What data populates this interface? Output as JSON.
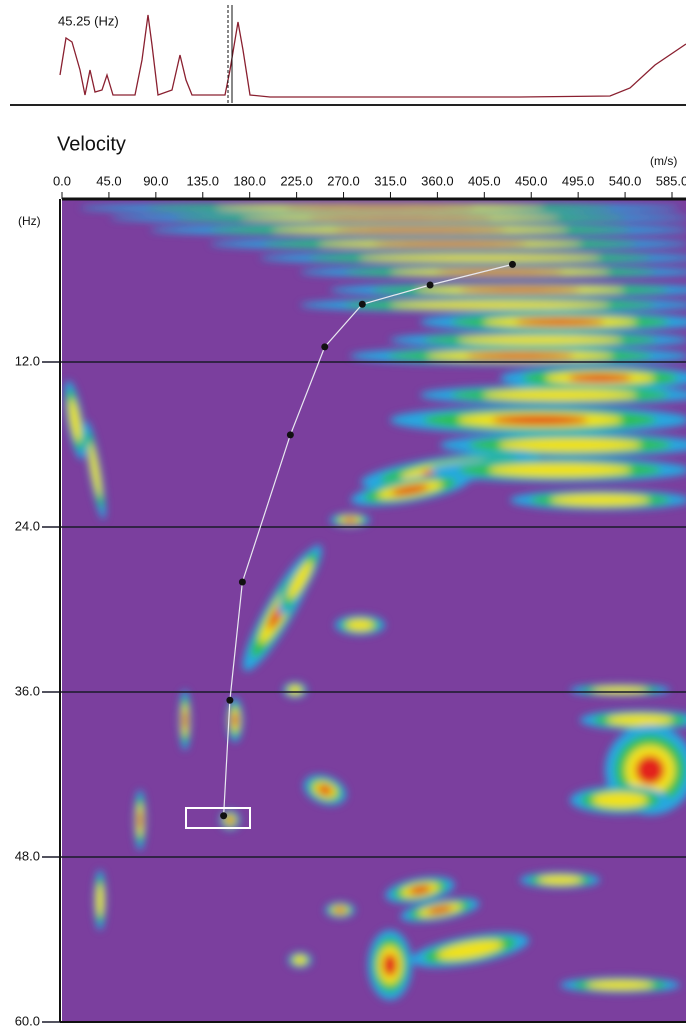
{
  "chart_data": {
    "type": "dispersion",
    "spectrum_label": "45.25 (Hz)",
    "title": "Velocity",
    "x_unit": "(m/s)",
    "y_unit": "(Hz)",
    "xlim": [
      0,
      585
    ],
    "xticks": [
      {
        "value": 0,
        "label": "0.0"
      },
      {
        "value": 45,
        "label": "45.0"
      },
      {
        "value": 90,
        "label": "90.0"
      },
      {
        "value": 135,
        "label": "135.0"
      },
      {
        "value": 180,
        "label": "180.0"
      },
      {
        "value": 225,
        "label": "225.0"
      },
      {
        "value": 270,
        "label": "270.0"
      },
      {
        "value": 315,
        "label": "315.0"
      },
      {
        "value": 360,
        "label": "360.0"
      },
      {
        "value": 405,
        "label": "405.0"
      },
      {
        "value": 450,
        "label": "450.0"
      },
      {
        "value": 495,
        "label": "495.0"
      },
      {
        "value": 540,
        "label": "540.0"
      },
      {
        "value": 585,
        "label": "585.0"
      }
    ],
    "ylim": [
      0,
      60
    ],
    "yticks": [
      {
        "value": 12,
        "label": "12.0"
      },
      {
        "value": 24,
        "label": "24.0"
      },
      {
        "value": 36,
        "label": "36.0"
      },
      {
        "value": 48,
        "label": "48.0"
      },
      {
        "value": 60,
        "label": "60.0"
      }
    ],
    "grid": true,
    "series": [
      {
        "color": "#e8e8f0",
        "x": [
          432,
          353,
          288,
          252,
          219,
          173,
          161,
          155
        ],
        "values": [
          4.9,
          6.4,
          7.8,
          10.9,
          17.3,
          28.0,
          36.6,
          45.0
        ]
      }
    ]
  }
}
